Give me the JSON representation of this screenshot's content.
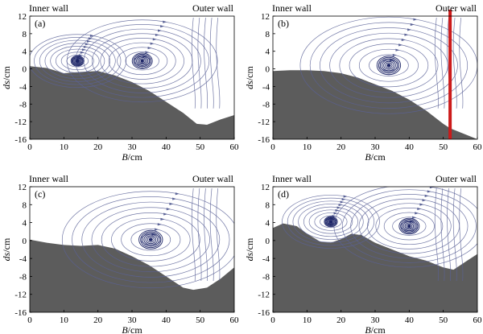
{
  "figure": {
    "panels": [
      {
        "id": "a",
        "label": "(a)",
        "inner_wall_label": "Inner wall",
        "outer_wall_label": "Outer wall",
        "x_label_italic": "B",
        "x_label_unit": "/cm",
        "y_label_italic": "ds",
        "y_label_unit": "/cm",
        "x_ticks": [
          "0",
          "10",
          "20",
          "30",
          "40",
          "50",
          "60"
        ],
        "y_ticks": [
          "12",
          "8",
          "4",
          "0",
          "-4",
          "-8",
          "-12",
          "-16"
        ],
        "xlim": [
          0,
          60
        ],
        "ylim": [
          -16,
          12
        ],
        "bed_profile": [
          [
            0,
            0.6
          ],
          [
            5,
            0.2
          ],
          [
            10,
            -1
          ],
          [
            15,
            -0.7
          ],
          [
            20,
            -0.5
          ],
          [
            25,
            -1.5
          ],
          [
            30,
            -3
          ],
          [
            35,
            -5
          ],
          [
            40,
            -7.5
          ],
          [
            45,
            -10
          ],
          [
            49,
            -12.5
          ],
          [
            52,
            -12.7
          ],
          [
            56,
            -11.5
          ],
          [
            60,
            -10.5
          ]
        ],
        "vortex_centers": [
          [
            14,
            1.8
          ],
          [
            33,
            1.8
          ]
        ],
        "has_red_line": false
      },
      {
        "id": "b",
        "label": "(b)",
        "inner_wall_label": "Inner wall",
        "outer_wall_label": "Outer wall",
        "x_label_italic": "B",
        "x_label_unit": "/cm",
        "y_label_italic": "ds",
        "y_label_unit": "/cm",
        "x_ticks": [
          "0",
          "10",
          "20",
          "30",
          "40",
          "50",
          "60"
        ],
        "y_ticks": [
          "12",
          "8",
          "4",
          "0",
          "-4",
          "-8",
          "-12",
          "-16"
        ],
        "xlim": [
          0,
          60
        ],
        "ylim": [
          -16,
          12
        ],
        "bed_profile": [
          [
            0,
            -0.5
          ],
          [
            5,
            -0.3
          ],
          [
            10,
            -0.3
          ],
          [
            15,
            -0.5
          ],
          [
            20,
            -1
          ],
          [
            25,
            -2
          ],
          [
            30,
            -3.5
          ],
          [
            35,
            -5
          ],
          [
            40,
            -7
          ],
          [
            45,
            -9.5
          ],
          [
            50,
            -12.5
          ],
          [
            52,
            -13.5
          ],
          [
            60,
            -16
          ]
        ],
        "vortex_centers": [
          [
            34,
            0.8
          ]
        ],
        "has_red_line": true,
        "red_line_x": 52
      },
      {
        "id": "c",
        "label": "(c)",
        "inner_wall_label": "Inner wall",
        "outer_wall_label": "Outer wall",
        "x_label_italic": "B",
        "x_label_unit": "/cm",
        "y_label_italic": "ds",
        "y_label_unit": "/cm",
        "x_ticks": [
          "0",
          "10",
          "20",
          "30",
          "40",
          "50",
          "60"
        ],
        "y_ticks": [
          "12",
          "8",
          "4",
          "0",
          "-4",
          "-8",
          "-12",
          "-16"
        ],
        "xlim": [
          0,
          60
        ],
        "ylim": [
          -16,
          12
        ],
        "bed_profile": [
          [
            0,
            0.2
          ],
          [
            5,
            -0.5
          ],
          [
            10,
            -1
          ],
          [
            15,
            -1.2
          ],
          [
            20,
            -1
          ],
          [
            25,
            -1.8
          ],
          [
            30,
            -3.5
          ],
          [
            35,
            -5.5
          ],
          [
            40,
            -8
          ],
          [
            45,
            -10.5
          ],
          [
            48,
            -11
          ],
          [
            52,
            -10.5
          ],
          [
            56,
            -8.5
          ],
          [
            60,
            -6
          ]
        ],
        "vortex_centers": [
          [
            35.5,
            0.2
          ]
        ],
        "has_red_line": false
      },
      {
        "id": "d",
        "label": "(d)",
        "inner_wall_label": "Inner wall",
        "outer_wall_label": "Outer wall",
        "x_label_italic": "B",
        "x_label_unit": "/cm",
        "y_label_italic": "ds",
        "y_label_unit": "/cm",
        "x_ticks": [
          "0",
          "10",
          "20",
          "30",
          "40",
          "50",
          "60"
        ],
        "y_ticks": [
          "12",
          "8",
          "4",
          "0",
          "-4",
          "-8",
          "-12",
          "-16"
        ],
        "xlim": [
          0,
          60
        ],
        "ylim": [
          -16,
          12
        ],
        "bed_profile": [
          [
            0,
            2.8
          ],
          [
            3,
            3.8
          ],
          [
            7,
            3.2
          ],
          [
            10,
            1.5
          ],
          [
            14,
            -0.3
          ],
          [
            17,
            -0.5
          ],
          [
            20,
            0.3
          ],
          [
            23,
            1.5
          ],
          [
            26,
            1.2
          ],
          [
            30,
            -0.5
          ],
          [
            35,
            -2
          ],
          [
            40,
            -3.5
          ],
          [
            45,
            -4.5
          ],
          [
            50,
            -6
          ],
          [
            53,
            -6.5
          ],
          [
            57,
            -4.5
          ],
          [
            60,
            -3
          ]
        ],
        "vortex_centers": [
          [
            17,
            4.2
          ],
          [
            40,
            3.2
          ]
        ],
        "has_red_line": false
      }
    ]
  },
  "colors": {
    "bed": "#5c5c5c",
    "stream": "#5a6296",
    "core": "#1c2466",
    "red_line": "#cc1a1a",
    "frame": "#000000"
  }
}
